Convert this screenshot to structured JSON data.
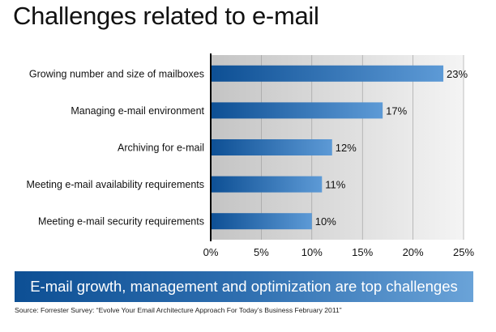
{
  "title": "Challenges related to e-mail",
  "chart_data": {
    "type": "bar",
    "orientation": "horizontal",
    "categories": [
      "Growing number and size of mailboxes",
      "Managing e-mail environment",
      "Archiving for e-mail",
      "Meeting e-mail availability requirements",
      "Meeting e-mail security requirements"
    ],
    "values": [
      23,
      17,
      12,
      11,
      10
    ],
    "data_labels": [
      "23%",
      "17%",
      "12%",
      "11%",
      "10%"
    ],
    "xlim": [
      0,
      25
    ],
    "xticks": [
      "0%",
      "5%",
      "10%",
      "15%",
      "20%",
      "25%"
    ],
    "grid": true,
    "bar_color_start": "#0d4f94",
    "bar_color_end": "#5d9ad6"
  },
  "banner": "E-mail growth, management and optimization are top challenges",
  "source": "Source: Forrester Survey:  “Evolve  Your Email Architecture Approach For Today’s Business February  2011”"
}
